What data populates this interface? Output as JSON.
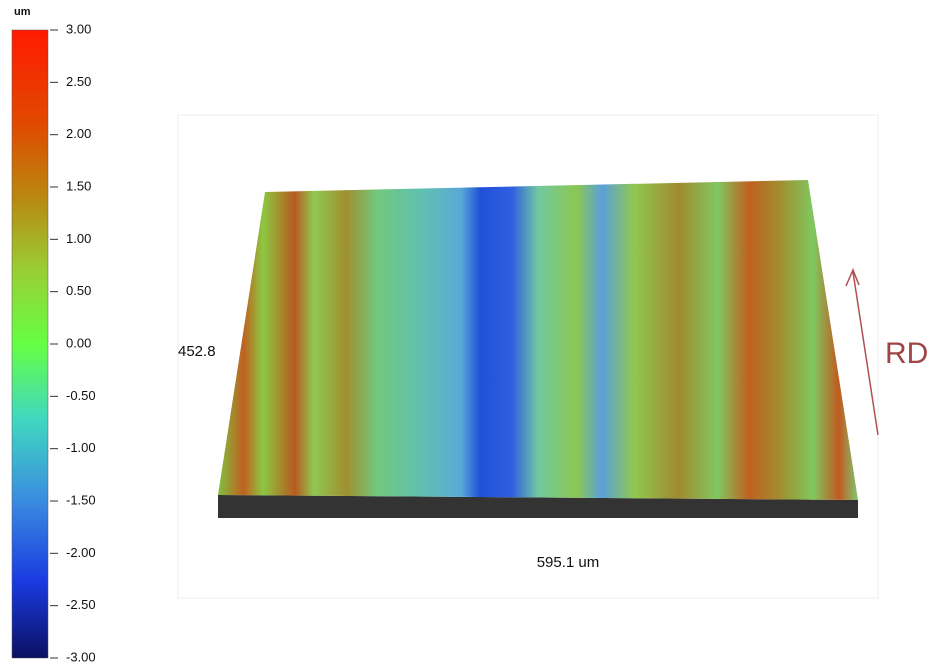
{
  "colorbar": {
    "unit": "um",
    "range": [
      -3,
      3
    ],
    "ticks": [
      {
        "value": 3,
        "label": "3.00"
      },
      {
        "value": 2.5,
        "label": "2.50"
      },
      {
        "value": 2,
        "label": "2.00"
      },
      {
        "value": 1.5,
        "label": "1.50"
      },
      {
        "value": 1,
        "label": "1.00"
      },
      {
        "value": 0.5,
        "label": "0.50"
      },
      {
        "value": 0,
        "label": "0.00"
      },
      {
        "value": -0.5,
        "label": "-0.50"
      },
      {
        "value": -1,
        "label": "-1.00"
      },
      {
        "value": -1.5,
        "label": "-1.50"
      },
      {
        "value": -2,
        "label": "-2.00"
      },
      {
        "value": -2.5,
        "label": "-2.50"
      },
      {
        "value": -3,
        "label": "-3.00"
      }
    ]
  },
  "surface": {
    "depth_label": "452.8",
    "width_label": "595.1 um"
  },
  "annotation": {
    "label": "RD"
  }
}
